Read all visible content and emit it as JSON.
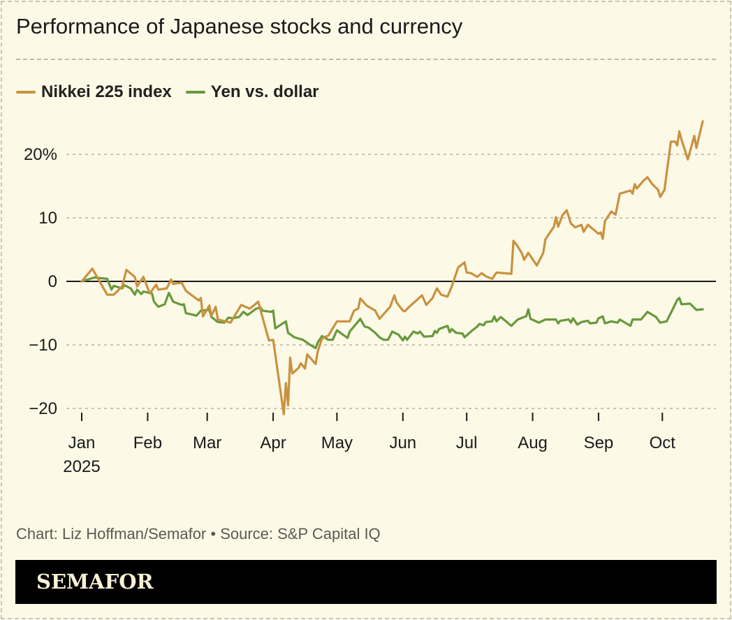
{
  "title": "Performance of Japanese stocks and currency",
  "credit": "Chart: Liz Hoffman/Semafor • Source: S&P Capital IQ",
  "logo": "SEMAFOR",
  "colors": {
    "nikkei": "#c9913f",
    "yen": "#67993a",
    "background": "#fcf9e7",
    "zero_line": "#1a1a1a",
    "grid": "#b5b3aa"
  },
  "chart_data": {
    "type": "line",
    "title": "Performance of Japanese stocks and currency",
    "xlabel": "",
    "ylabel": "",
    "ylim": [
      -21,
      26
    ],
    "xlim": [
      "2025-01-01",
      "2025-10-31"
    ],
    "grid": true,
    "legend_placement": "top-left",
    "yticks": [
      {
        "value": 20,
        "label": "20%"
      },
      {
        "value": 10,
        "label": "10"
      },
      {
        "value": 0,
        "label": "0"
      },
      {
        "value": -10,
        "label": "−10"
      },
      {
        "value": -20,
        "label": "−20"
      }
    ],
    "xticks": [
      {
        "date": "2025-01-01",
        "label": "Jan",
        "sub": "2025"
      },
      {
        "date": "2025-02-01",
        "label": "Feb"
      },
      {
        "date": "2025-03-01",
        "label": "Mar"
      },
      {
        "date": "2025-04-01",
        "label": "Apr"
      },
      {
        "date": "2025-05-01",
        "label": "May"
      },
      {
        "date": "2025-06-01",
        "label": "Jun"
      },
      {
        "date": "2025-07-01",
        "label": "Jul"
      },
      {
        "date": "2025-08-01",
        "label": "Aug"
      },
      {
        "date": "2025-09-01",
        "label": "Sep"
      },
      {
        "date": "2025-10-01",
        "label": "Oct"
      }
    ],
    "series": [
      {
        "name": "Nikkei 225 index",
        "color": "#c9913f",
        "points": [
          [
            "2025-01-01",
            0
          ],
          [
            "2025-01-06",
            2.0
          ],
          [
            "2025-01-13",
            -2.1
          ],
          [
            "2025-01-16",
            -2.1
          ],
          [
            "2025-01-20",
            -0.8
          ],
          [
            "2025-01-22",
            1.8
          ],
          [
            "2025-01-26",
            0.7
          ],
          [
            "2025-01-27",
            -0.8
          ],
          [
            "2025-01-30",
            0.7
          ],
          [
            "2025-02-02",
            -1.9
          ],
          [
            "2025-02-05",
            -0.5
          ],
          [
            "2025-02-06",
            -1.3
          ],
          [
            "2025-02-10",
            -1.1
          ],
          [
            "2025-02-12",
            0.3
          ],
          [
            "2025-02-13",
            -0.4
          ],
          [
            "2025-02-17",
            -0.2
          ],
          [
            "2025-02-19",
            -1.5
          ],
          [
            "2025-02-25",
            -3.0
          ],
          [
            "2025-02-26",
            -2.6
          ],
          [
            "2025-02-27",
            -5.5
          ],
          [
            "2025-03-02",
            -3.8
          ],
          [
            "2025-03-03",
            -5.4
          ],
          [
            "2025-03-05",
            -4.0
          ],
          [
            "2025-03-06",
            -6.0
          ],
          [
            "2025-03-12",
            -6.5
          ],
          [
            "2025-03-17",
            -3.7
          ],
          [
            "2025-03-21",
            -4.3
          ],
          [
            "2025-03-25",
            -3.2
          ],
          [
            "2025-03-30",
            -9.3
          ],
          [
            "2025-04-01",
            -9.2
          ],
          [
            "2025-04-06",
            -20.9
          ],
          [
            "2025-04-07",
            -16.0
          ],
          [
            "2025-04-08",
            -19.5
          ],
          [
            "2025-04-09",
            -12.0
          ],
          [
            "2025-04-10",
            -14.5
          ],
          [
            "2025-04-13",
            -13.6
          ],
          [
            "2025-04-14",
            -12.9
          ],
          [
            "2025-04-16",
            -13.7
          ],
          [
            "2025-04-17",
            -11.5
          ],
          [
            "2025-04-21",
            -13.0
          ],
          [
            "2025-04-22",
            -11.0
          ],
          [
            "2025-04-24",
            -9.0
          ],
          [
            "2025-04-27",
            -8.5
          ],
          [
            "2025-05-01",
            -6.3
          ],
          [
            "2025-05-07",
            -6.3
          ],
          [
            "2025-05-09",
            -4.6
          ],
          [
            "2025-05-11",
            -4.3
          ],
          [
            "2025-05-12",
            -2.7
          ],
          [
            "2025-05-15",
            -3.8
          ],
          [
            "2025-05-19",
            -4.6
          ],
          [
            "2025-05-21",
            -5.9
          ],
          [
            "2025-05-26",
            -4.0
          ],
          [
            "2025-05-28",
            -2.2
          ],
          [
            "2025-05-29",
            -3.3
          ],
          [
            "2025-06-01",
            -4.6
          ],
          [
            "2025-06-02",
            -4.7
          ],
          [
            "2025-06-04",
            -4.0
          ],
          [
            "2025-06-10",
            -2.2
          ],
          [
            "2025-06-12",
            -3.7
          ],
          [
            "2025-06-15",
            -2.6
          ],
          [
            "2025-06-17",
            -1.1
          ],
          [
            "2025-06-19",
            -2.1
          ],
          [
            "2025-06-22",
            -2.4
          ],
          [
            "2025-06-24",
            -0.8
          ],
          [
            "2025-06-27",
            2.2
          ],
          [
            "2025-06-30",
            3.0
          ],
          [
            "2025-07-01",
            1.4
          ],
          [
            "2025-07-03",
            1.3
          ],
          [
            "2025-07-06",
            0.7
          ],
          [
            "2025-07-08",
            1.3
          ],
          [
            "2025-07-10",
            0.8
          ],
          [
            "2025-07-13",
            0.4
          ],
          [
            "2025-07-15",
            1.4
          ],
          [
            "2025-07-22",
            1.2
          ],
          [
            "2025-07-23",
            6.4
          ],
          [
            "2025-07-25",
            5.5
          ],
          [
            "2025-07-27",
            4.4
          ],
          [
            "2025-07-28",
            3.4
          ],
          [
            "2025-07-30",
            4.5
          ],
          [
            "2025-08-03",
            2.5
          ],
          [
            "2025-08-06",
            4.5
          ],
          [
            "2025-08-07",
            6.6
          ],
          [
            "2025-08-11",
            8.6
          ],
          [
            "2025-08-12",
            10.1
          ],
          [
            "2025-08-13",
            8.6
          ],
          [
            "2025-08-15",
            10.4
          ],
          [
            "2025-08-17",
            11.2
          ],
          [
            "2025-08-19",
            9.1
          ],
          [
            "2025-08-21",
            8.5
          ],
          [
            "2025-08-24",
            8.9
          ],
          [
            "2025-08-25",
            7.8
          ],
          [
            "2025-08-27",
            8.9
          ],
          [
            "2025-09-01",
            7.5
          ],
          [
            "2025-09-02",
            7.7
          ],
          [
            "2025-09-03",
            6.7
          ],
          [
            "2025-09-04",
            9.5
          ],
          [
            "2025-09-07",
            11.0
          ],
          [
            "2025-09-09",
            10.5
          ],
          [
            "2025-09-11",
            13.8
          ],
          [
            "2025-09-16",
            14.3
          ],
          [
            "2025-09-17",
            13.8
          ],
          [
            "2025-09-18",
            15.3
          ],
          [
            "2025-09-19",
            14.6
          ],
          [
            "2025-09-22",
            15.8
          ],
          [
            "2025-09-24",
            16.4
          ],
          [
            "2025-09-26",
            15.4
          ],
          [
            "2025-09-29",
            14.4
          ],
          [
            "2025-09-30",
            13.3
          ],
          [
            "2025-10-02",
            14.4
          ],
          [
            "2025-10-05",
            22.0
          ],
          [
            "2025-10-07",
            22.0
          ],
          [
            "2025-10-08",
            21.4
          ],
          [
            "2025-10-09",
            23.6
          ],
          [
            "2025-10-10",
            22.3
          ],
          [
            "2025-10-13",
            19.2
          ],
          [
            "2025-10-16",
            22.9
          ],
          [
            "2025-10-17",
            21.0
          ],
          [
            "2025-10-20",
            25.2
          ]
        ]
      },
      {
        "name": "Yen vs. dollar",
        "color": "#67993a",
        "points": [
          [
            "2025-01-01",
            0
          ],
          [
            "2025-01-07",
            0.6
          ],
          [
            "2025-01-13",
            0.4
          ],
          [
            "2025-01-15",
            -1.3
          ],
          [
            "2025-01-16",
            -0.7
          ],
          [
            "2025-01-20",
            -1.1
          ],
          [
            "2025-01-21",
            -0.6
          ],
          [
            "2025-01-24",
            -1.1
          ],
          [
            "2025-01-26",
            -2.1
          ],
          [
            "2025-01-27",
            -1.3
          ],
          [
            "2025-01-29",
            -2.0
          ],
          [
            "2025-01-30",
            -1.6
          ],
          [
            "2025-02-03",
            -1.9
          ],
          [
            "2025-02-04",
            -3.2
          ],
          [
            "2025-02-06",
            -4.0
          ],
          [
            "2025-02-09",
            -3.6
          ],
          [
            "2025-02-11",
            -1.8
          ],
          [
            "2025-02-13",
            -3.2
          ],
          [
            "2025-02-17",
            -3.7
          ],
          [
            "2025-02-18",
            -3.6
          ],
          [
            "2025-02-19",
            -5.0
          ],
          [
            "2025-02-24",
            -5.4
          ],
          [
            "2025-02-26",
            -4.6
          ],
          [
            "2025-03-02",
            -4.5
          ],
          [
            "2025-03-03",
            -5.6
          ],
          [
            "2025-03-06",
            -6.4
          ],
          [
            "2025-03-09",
            -6.5
          ],
          [
            "2025-03-11",
            -5.7
          ],
          [
            "2025-03-13",
            -5.8
          ],
          [
            "2025-03-16",
            -5.6
          ],
          [
            "2025-03-18",
            -4.8
          ],
          [
            "2025-03-20",
            -5.3
          ],
          [
            "2025-03-24",
            -4.3
          ],
          [
            "2025-03-26",
            -4.1
          ],
          [
            "2025-03-27",
            -4.6
          ],
          [
            "2025-03-31",
            -4.8
          ],
          [
            "2025-04-01",
            -4.6
          ],
          [
            "2025-04-02",
            -7.4
          ],
          [
            "2025-04-07",
            -6.3
          ],
          [
            "2025-04-08",
            -8.1
          ],
          [
            "2025-04-11",
            -8.8
          ],
          [
            "2025-04-15",
            -9.2
          ],
          [
            "2025-04-18",
            -9.9
          ],
          [
            "2025-04-21",
            -10.5
          ],
          [
            "2025-04-22",
            -9.6
          ],
          [
            "2025-04-24",
            -8.6
          ],
          [
            "2025-04-27",
            -9.2
          ],
          [
            "2025-04-29",
            -9.2
          ],
          [
            "2025-05-01",
            -7.7
          ],
          [
            "2025-05-06",
            -8.9
          ],
          [
            "2025-05-07",
            -7.9
          ],
          [
            "2025-05-12",
            -5.9
          ],
          [
            "2025-05-14",
            -7.1
          ],
          [
            "2025-05-16",
            -7.3
          ],
          [
            "2025-05-19",
            -8.1
          ],
          [
            "2025-05-21",
            -8.8
          ],
          [
            "2025-05-23",
            -9.2
          ],
          [
            "2025-05-25",
            -9.2
          ],
          [
            "2025-05-27",
            -7.9
          ],
          [
            "2025-05-30",
            -8.4
          ],
          [
            "2025-06-01",
            -9.3
          ],
          [
            "2025-06-02",
            -8.7
          ],
          [
            "2025-06-03",
            -9.2
          ],
          [
            "2025-06-06",
            -7.9
          ],
          [
            "2025-06-08",
            -8.2
          ],
          [
            "2025-06-09",
            -7.9
          ],
          [
            "2025-06-11",
            -8.7
          ],
          [
            "2025-06-15",
            -8.6
          ],
          [
            "2025-06-16",
            -7.8
          ],
          [
            "2025-06-17",
            -8.1
          ],
          [
            "2025-06-18",
            -7.5
          ],
          [
            "2025-06-22",
            -7.0
          ],
          [
            "2025-06-23",
            -8.0
          ],
          [
            "2025-06-24",
            -7.5
          ],
          [
            "2025-06-26",
            -8.1
          ],
          [
            "2025-06-29",
            -8.2
          ],
          [
            "2025-06-30",
            -8.8
          ],
          [
            "2025-07-03",
            -7.9
          ],
          [
            "2025-07-06",
            -7.1
          ],
          [
            "2025-07-07",
            -6.7
          ],
          [
            "2025-07-09",
            -6.9
          ],
          [
            "2025-07-10",
            -6.4
          ],
          [
            "2025-07-13",
            -6.3
          ],
          [
            "2025-07-14",
            -5.5
          ],
          [
            "2025-07-15",
            -6.3
          ],
          [
            "2025-07-17",
            -5.6
          ],
          [
            "2025-07-22",
            -7.0
          ],
          [
            "2025-07-25",
            -6.0
          ],
          [
            "2025-07-28",
            -5.6
          ],
          [
            "2025-07-29",
            -5.5
          ],
          [
            "2025-07-30",
            -4.4
          ],
          [
            "2025-07-31",
            -5.9
          ],
          [
            "2025-08-04",
            -6.5
          ],
          [
            "2025-08-07",
            -6.0
          ],
          [
            "2025-08-12",
            -6.0
          ],
          [
            "2025-08-13",
            -6.6
          ],
          [
            "2025-08-14",
            -6.2
          ],
          [
            "2025-08-18",
            -6.0
          ],
          [
            "2025-08-19",
            -6.5
          ],
          [
            "2025-08-20",
            -5.8
          ],
          [
            "2025-08-22",
            -6.8
          ],
          [
            "2025-08-24",
            -6.4
          ],
          [
            "2025-08-27",
            -6.2
          ],
          [
            "2025-08-28",
            -6.6
          ],
          [
            "2025-08-31",
            -6.5
          ],
          [
            "2025-09-01",
            -5.8
          ],
          [
            "2025-09-03",
            -5.5
          ],
          [
            "2025-09-04",
            -6.6
          ],
          [
            "2025-09-07",
            -6.3
          ],
          [
            "2025-09-10",
            -6.5
          ],
          [
            "2025-09-11",
            -6.0
          ],
          [
            "2025-09-16",
            -7.0
          ],
          [
            "2025-09-17",
            -6.0
          ],
          [
            "2025-09-21",
            -6.0
          ],
          [
            "2025-09-24",
            -4.8
          ],
          [
            "2025-09-28",
            -5.6
          ],
          [
            "2025-09-30",
            -6.5
          ],
          [
            "2025-10-03",
            -6.3
          ],
          [
            "2025-10-06",
            -4.3
          ],
          [
            "2025-10-08",
            -2.9
          ],
          [
            "2025-10-09",
            -2.6
          ],
          [
            "2025-10-10",
            -3.6
          ],
          [
            "2025-10-14",
            -3.5
          ],
          [
            "2025-10-17",
            -4.5
          ],
          [
            "2025-10-20",
            -4.4
          ]
        ]
      }
    ]
  }
}
